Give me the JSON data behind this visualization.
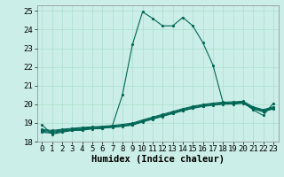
{
  "xlabel": "Humidex (Indice chaleur)",
  "xlim": [
    -0.5,
    23.5
  ],
  "ylim": [
    18,
    25.3
  ],
  "yticks": [
    18,
    19,
    20,
    21,
    22,
    23,
    24,
    25
  ],
  "xticks": [
    0,
    1,
    2,
    3,
    4,
    5,
    6,
    7,
    8,
    9,
    10,
    11,
    12,
    13,
    14,
    15,
    16,
    17,
    18,
    19,
    20,
    21,
    22,
    23
  ],
  "bg_color": "#cceee8",
  "line_color": "#006655",
  "grid_color": "#aaddcc",
  "main_series": {
    "x": [
      0,
      1,
      2,
      3,
      4,
      5,
      6,
      7,
      8,
      9,
      10,
      11,
      12,
      13,
      14,
      15,
      16,
      17,
      18,
      19,
      20,
      21,
      22,
      23
    ],
    "y": [
      18.9,
      18.4,
      18.5,
      18.6,
      18.6,
      18.7,
      18.7,
      18.85,
      20.5,
      23.2,
      24.95,
      24.6,
      24.2,
      24.2,
      24.65,
      24.2,
      23.3,
      22.1,
      20.1,
      20.0,
      20.1,
      19.7,
      19.4,
      20.05
    ]
  },
  "flat_series": [
    {
      "x": [
        0,
        1,
        2,
        3,
        4,
        5,
        6,
        7,
        8,
        9,
        10,
        11,
        12,
        13,
        14,
        15,
        16,
        17,
        18,
        19,
        20,
        21,
        22,
        23
      ],
      "y": [
        18.5,
        18.45,
        18.55,
        18.6,
        18.65,
        18.68,
        18.72,
        18.76,
        18.82,
        18.88,
        19.05,
        19.2,
        19.35,
        19.5,
        19.65,
        19.78,
        19.88,
        19.95,
        20.0,
        20.02,
        20.05,
        19.75,
        19.6,
        19.75
      ]
    },
    {
      "x": [
        0,
        1,
        2,
        3,
        4,
        5,
        6,
        7,
        8,
        9,
        10,
        11,
        12,
        13,
        14,
        15,
        16,
        17,
        18,
        19,
        20,
        21,
        22,
        23
      ],
      "y": [
        18.55,
        18.5,
        18.58,
        18.63,
        18.68,
        18.71,
        18.75,
        18.79,
        18.85,
        18.92,
        19.08,
        19.23,
        19.38,
        19.53,
        19.68,
        19.81,
        19.91,
        19.98,
        20.03,
        20.05,
        20.08,
        19.78,
        19.63,
        19.78
      ]
    },
    {
      "x": [
        0,
        1,
        2,
        3,
        4,
        5,
        6,
        7,
        8,
        9,
        10,
        11,
        12,
        13,
        14,
        15,
        16,
        17,
        18,
        19,
        20,
        21,
        22,
        23
      ],
      "y": [
        18.6,
        18.55,
        18.62,
        18.67,
        18.72,
        18.75,
        18.78,
        18.82,
        18.88,
        18.95,
        19.12,
        19.27,
        19.42,
        19.57,
        19.72,
        19.85,
        19.95,
        20.02,
        20.07,
        20.09,
        20.12,
        19.82,
        19.67,
        19.82
      ]
    },
    {
      "x": [
        0,
        1,
        2,
        3,
        4,
        5,
        6,
        7,
        8,
        9,
        10,
        11,
        12,
        13,
        14,
        15,
        16,
        17,
        18,
        19,
        20,
        21,
        22,
        23
      ],
      "y": [
        18.65,
        18.6,
        18.66,
        18.71,
        18.76,
        18.79,
        18.82,
        18.86,
        18.92,
        18.99,
        19.16,
        19.31,
        19.46,
        19.61,
        19.76,
        19.89,
        19.99,
        20.06,
        20.11,
        20.13,
        20.16,
        19.86,
        19.71,
        19.86
      ]
    }
  ],
  "marker_size": 2.5,
  "line_width": 0.8,
  "font_family": "monospace",
  "font_size_tick": 6.5,
  "font_size_label": 7.5
}
